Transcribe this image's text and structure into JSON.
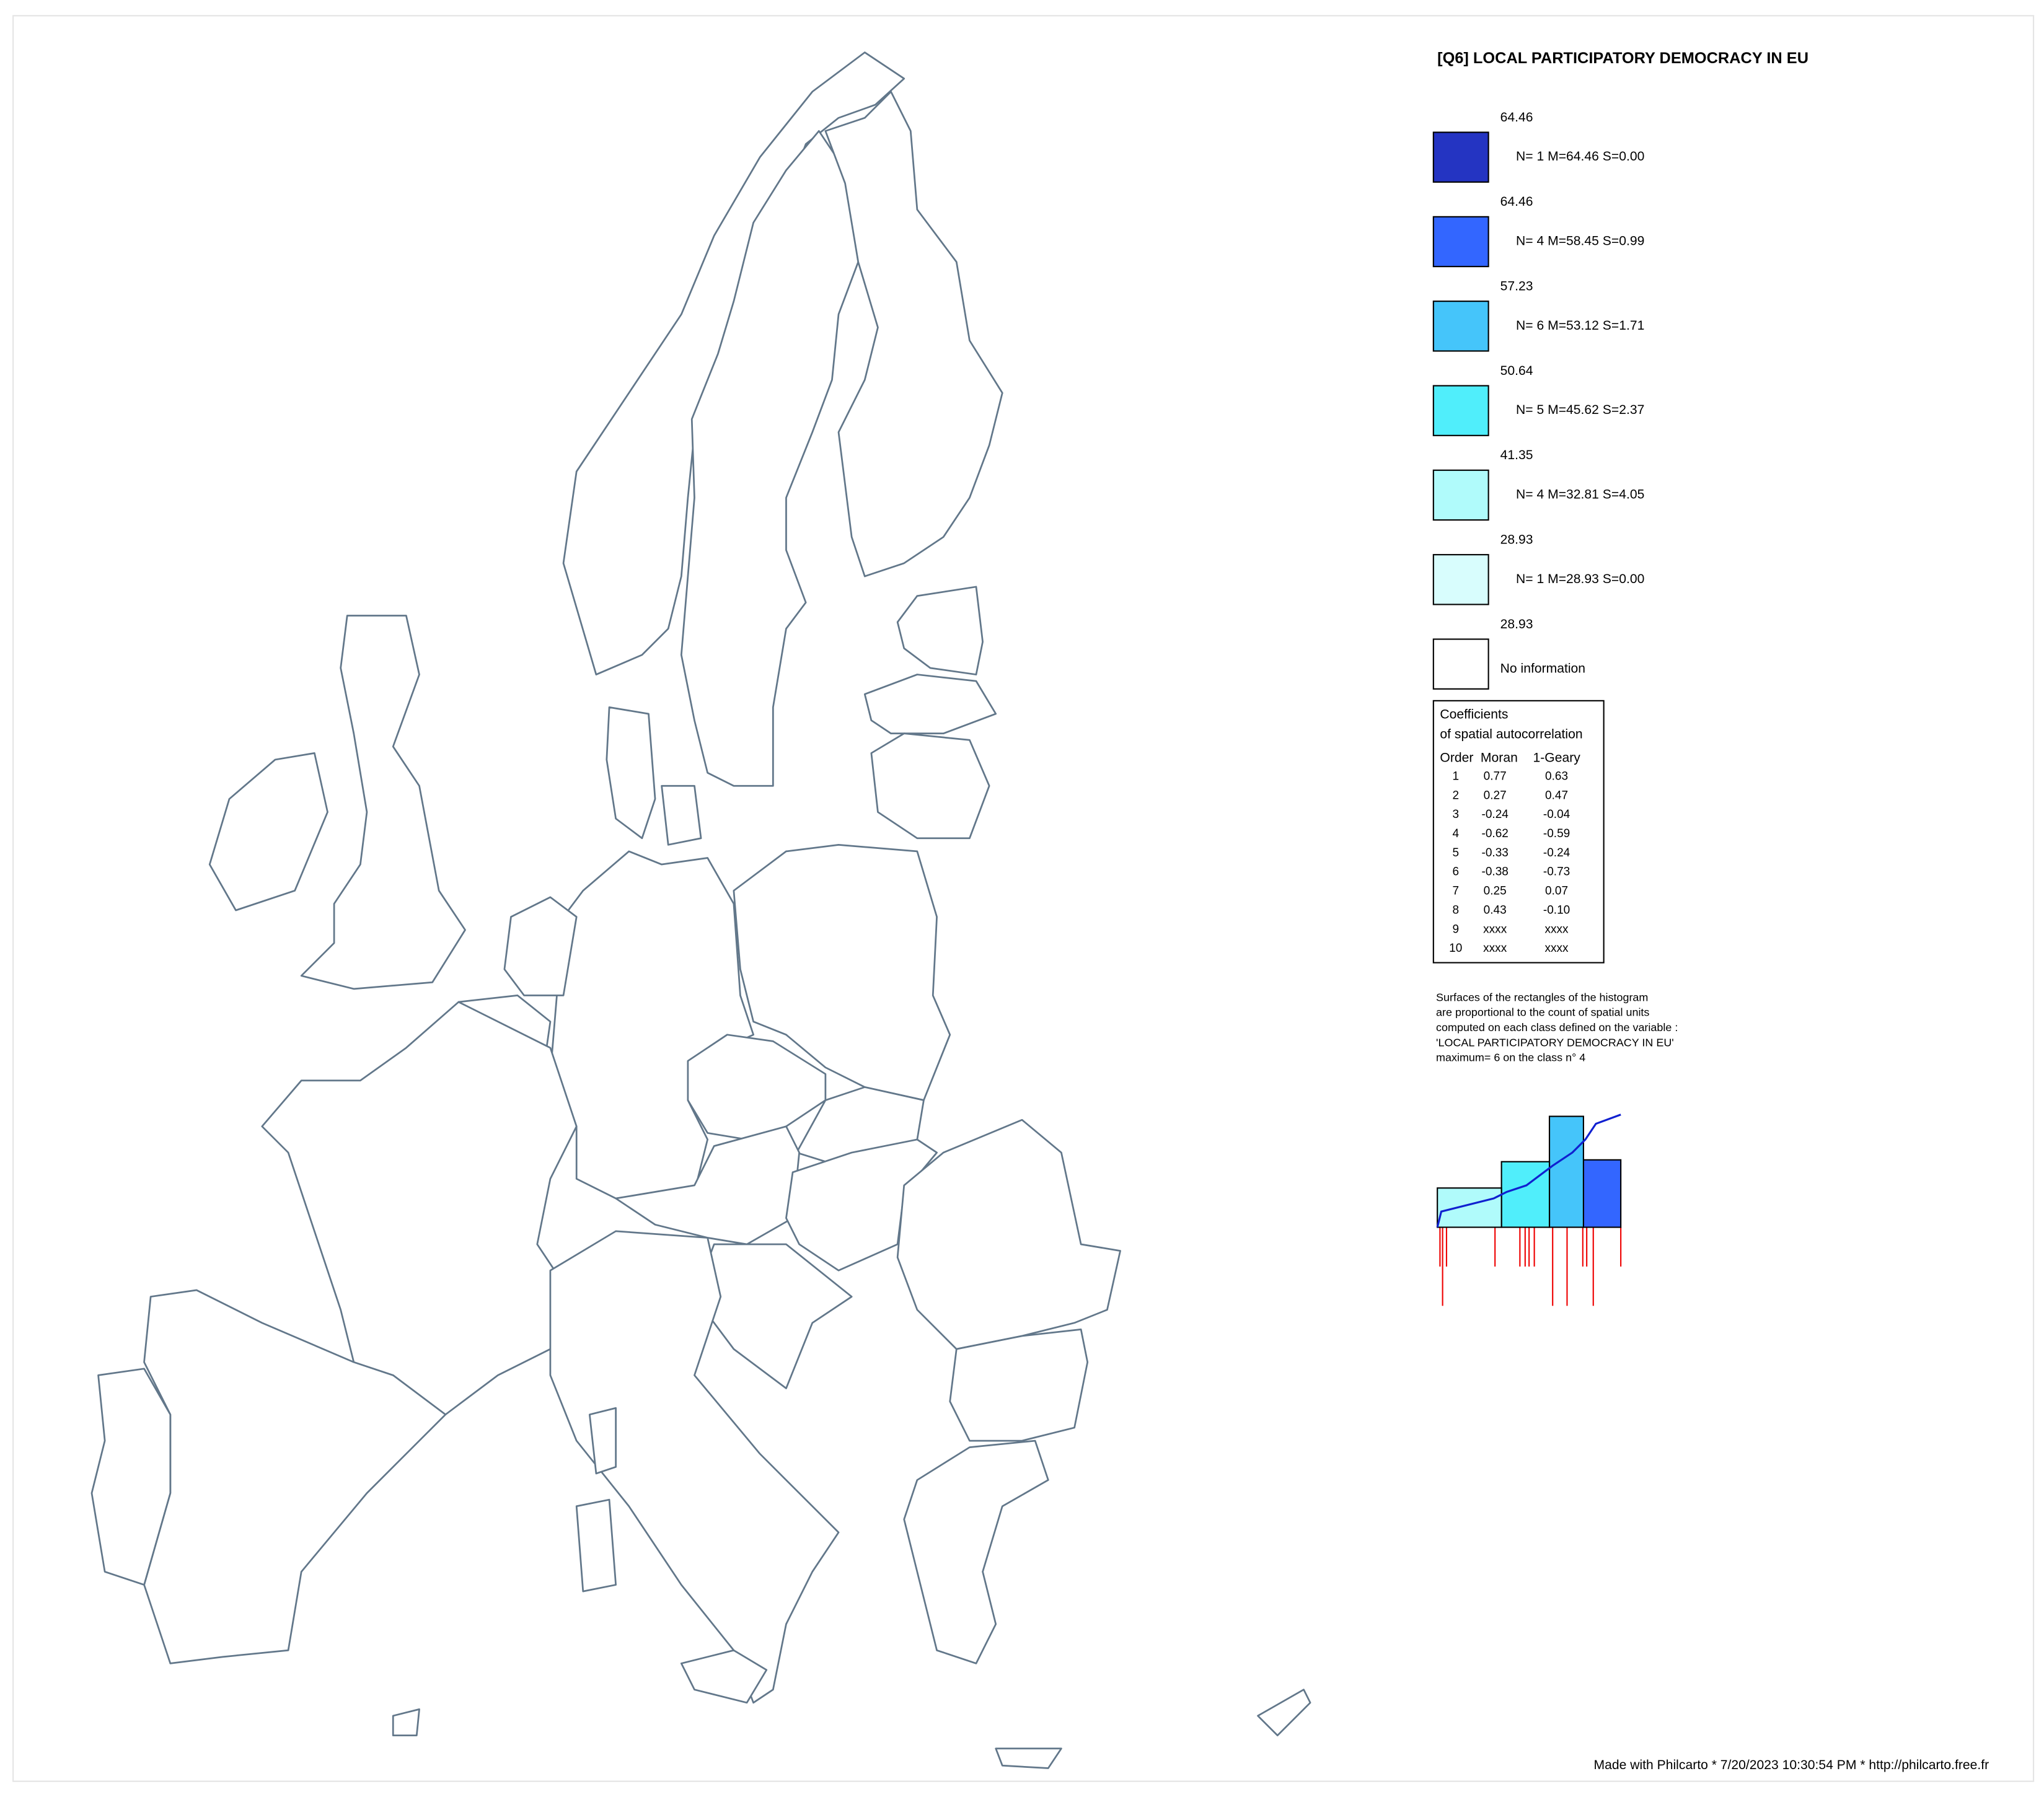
{
  "title": "[Q6] LOCAL PARTICIPATORY DEMOCRACY IN EU",
  "legend": {
    "bounds": [
      "64.46",
      "64.46",
      "57.23",
      "50.64",
      "41.35",
      "28.93",
      "28.93"
    ],
    "bound_values": [
      64.46,
      64.46,
      57.23,
      50.64,
      41.35,
      28.93,
      28.93
    ],
    "classes": [
      {
        "label": "N= 1  M=64.46  S=0.00",
        "count": 1,
        "color": "#2434c2"
      },
      {
        "label": "N= 4  M=58.45  S=0.99",
        "count": 4,
        "color": "#3366ff"
      },
      {
        "label": "N= 6  M=53.12  S=1.71",
        "count": 6,
        "color": "#45c5fa"
      },
      {
        "label": "N= 5  M=45.62  S=2.37",
        "count": 5,
        "color": "#50eefb"
      },
      {
        "label": "N= 4  M=32.81  S=4.05",
        "count": 4,
        "color": "#b0fbfb"
      },
      {
        "label": "N= 1  M=28.93  S=0.00",
        "count": 1,
        "color": "#d8fdfd"
      }
    ],
    "no_information": "No information"
  },
  "coefficients": {
    "title": [
      "Coefficients",
      "of spatial autocorrelation"
    ],
    "header": [
      "Order",
      "Moran",
      "1-Geary"
    ],
    "rows": [
      [
        "1",
        "0.77",
        "0.63"
      ],
      [
        "2",
        "0.27",
        "0.47"
      ],
      [
        "3",
        "-0.24",
        "-0.04"
      ],
      [
        "4",
        "-0.62",
        "-0.59"
      ],
      [
        "5",
        "-0.33",
        "-0.24"
      ],
      [
        "6",
        "-0.38",
        "-0.73"
      ],
      [
        "7",
        "0.25",
        "0.07"
      ],
      [
        "8",
        "0.43",
        "-0.10"
      ],
      [
        "9",
        "xxxx",
        "xxxx"
      ],
      [
        "10",
        "xxxx",
        "xxxx"
      ]
    ]
  },
  "histogram_note": [
    "Surfaces of the rectangles of the histogram",
    "are proportional to the count of spatial units",
    "computed on each class defined on the variable :",
    "'LOCAL PARTICIPATORY DEMOCRACY IN EU'",
    "maximum= 6 on the class n° 4"
  ],
  "footer": "Made with Philcarto * 7/20/2023 10:30:54 PM * http://philcarto.free.fr"
}
